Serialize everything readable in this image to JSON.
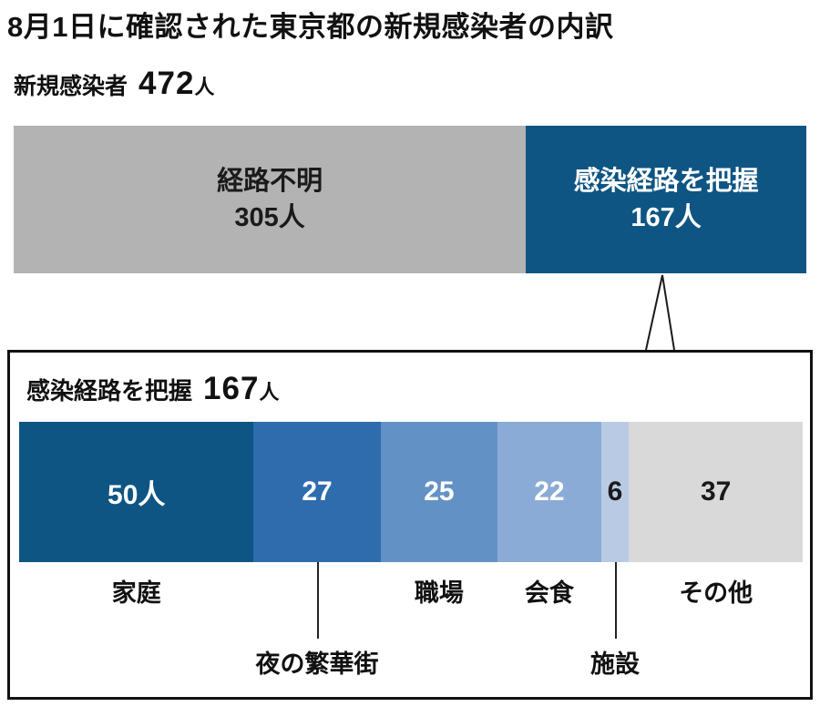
{
  "title": "8月1日に確認された東京都の新規感染者の内訳",
  "chart_data": [
    {
      "type": "bar",
      "orientation": "horizontal-stacked",
      "heading_label": "新規感染者",
      "heading_value": "472",
      "heading_unit": "人",
      "total": 472,
      "legend": "none",
      "segments": [
        {
          "label": "経路不明",
          "value": 305,
          "display": "305人",
          "color": "#b3b3b3",
          "text_color": "#1a1a1a"
        },
        {
          "label": "感染経路を把握",
          "value": 167,
          "display": "167人",
          "color": "#0e5583",
          "text_color": "#ffffff"
        }
      ]
    },
    {
      "type": "bar",
      "orientation": "horizontal-stacked",
      "heading_label": "感染経路を把握",
      "heading_value": "167",
      "heading_unit": "人",
      "total": 167,
      "legend": "none",
      "segments": [
        {
          "label": "家庭",
          "value": 50,
          "display": "50人",
          "color": "#0e5583",
          "text_color": "#ffffff",
          "label_position": "below"
        },
        {
          "label": "夜の繁華街",
          "value": 27,
          "display": "27",
          "color": "#2e6cae",
          "text_color": "#ffffff",
          "label_position": "callout"
        },
        {
          "label": "職場",
          "value": 25,
          "display": "25",
          "color": "#6291c6",
          "text_color": "#ffffff",
          "label_position": "below"
        },
        {
          "label": "会食",
          "value": 22,
          "display": "22",
          "color": "#8aabd6",
          "text_color": "#ffffff",
          "label_position": "below"
        },
        {
          "label": "施設",
          "value": 6,
          "display": "6",
          "color": "#b9cbe4",
          "text_color": "#1a1a1a",
          "label_position": "callout"
        },
        {
          "label": "その他",
          "value": 37,
          "display": "37",
          "color": "#d9d9d9",
          "text_color": "#1a1a1a",
          "label_position": "below"
        }
      ]
    }
  ]
}
